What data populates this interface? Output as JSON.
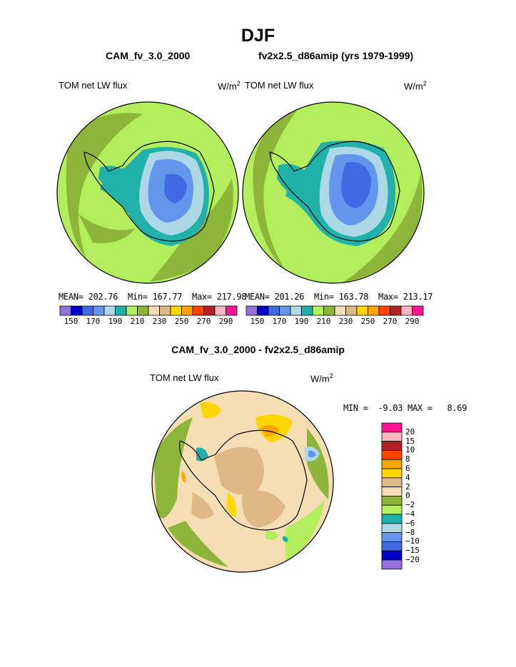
{
  "title": "DJF",
  "panels": [
    {
      "case": "CAM_fv_3.0_2000",
      "variable": "TOM net LW flux",
      "units": "W/m",
      "units_sup": "2",
      "stats": {
        "mean_label": "MEAN=",
        "mean": "202.76",
        "min_label": "Min=",
        "min": "167.77",
        "max_label": "Max=",
        "max": "217.98"
      }
    },
    {
      "case": "fv2x2.5_d86amip (yrs 1979-1999)",
      "variable": "TOM net LW flux",
      "units": "W/m",
      "units_sup": "2",
      "stats": {
        "mean_label": "MEAN=",
        "mean": "201.26",
        "min_label": "Min=",
        "min": "163.78",
        "max_label": "Max=",
        "max": "213.17"
      }
    }
  ],
  "colorbar": {
    "colors": [
      "#9370db",
      "#0000cd",
      "#4169e1",
      "#6495ed",
      "#add8e6",
      "#20b2aa",
      "#b3ee5d",
      "#8db53a",
      "#f5deb3",
      "#deb887",
      "#ffd700",
      "#ffa500",
      "#ff4500",
      "#b22222",
      "#ffb6c1",
      "#ff1493"
    ],
    "tick_labels": [
      "150",
      "170",
      "190",
      "210",
      "230",
      "250",
      "270",
      "290"
    ]
  },
  "difference": {
    "title": "CAM_fv_3.0_2000 - fv2x2.5_d86amip",
    "variable": "TOM net LW flux",
    "units": "W/m",
    "units_sup": "2",
    "min_label": "MIN =",
    "min": "-9.03",
    "max_label": "MAX =",
    "max": "8.69",
    "legend": [
      {
        "label": "20",
        "color": "#ff1493"
      },
      {
        "label": "15",
        "color": "#ffb6c1"
      },
      {
        "label": "10",
        "color": "#b22222"
      },
      {
        "label": "8",
        "color": "#ff4500"
      },
      {
        "label": "6",
        "color": "#ffa500"
      },
      {
        "label": "4",
        "color": "#ffd700"
      },
      {
        "label": "2",
        "color": "#deb887"
      },
      {
        "label": "0",
        "color": "#f5deb3"
      },
      {
        "label": "−2",
        "color": "#8db53a"
      },
      {
        "label": "−4",
        "color": "#b3ee5d"
      },
      {
        "label": "−6",
        "color": "#20b2aa"
      },
      {
        "label": "−8",
        "color": "#add8e6"
      },
      {
        "label": "−10",
        "color": "#6495ed"
      },
      {
        "label": "−15",
        "color": "#4169e1"
      },
      {
        "label": "−20",
        "color": "#0000cd"
      },
      {
        "label": "",
        "color": "#9370db"
      }
    ]
  },
  "chart_data": [
    {
      "type": "heatmap",
      "title": "CAM_fv_3.0_2000",
      "field": "TOM net LW flux",
      "units": "W/m2",
      "projection": "south polar stereographic",
      "stats": {
        "mean": 202.76,
        "min": 167.77,
        "max": 217.98
      },
      "levels": [
        150,
        160,
        170,
        180,
        190,
        200,
        210,
        220,
        230,
        240,
        250,
        260,
        270,
        280,
        290
      ]
    },
    {
      "type": "heatmap",
      "title": "fv2x2.5_d86amip (yrs 1979-1999)",
      "field": "TOM net LW flux",
      "units": "W/m2",
      "projection": "south polar stereographic",
      "stats": {
        "mean": 201.26,
        "min": 163.78,
        "max": 213.17
      },
      "levels": [
        150,
        160,
        170,
        180,
        190,
        200,
        210,
        220,
        230,
        240,
        250,
        260,
        270,
        280,
        290
      ]
    },
    {
      "type": "heatmap",
      "title": "CAM_fv_3.0_2000 - fv2x2.5_d86amip",
      "field": "TOM net LW flux",
      "units": "W/m2",
      "projection": "south polar stereographic",
      "stats": {
        "min": -9.03,
        "max": 8.69
      },
      "levels": [
        -20,
        -15,
        -10,
        -8,
        -6,
        -4,
        -2,
        0,
        2,
        4,
        6,
        8,
        10,
        15,
        20
      ]
    }
  ]
}
